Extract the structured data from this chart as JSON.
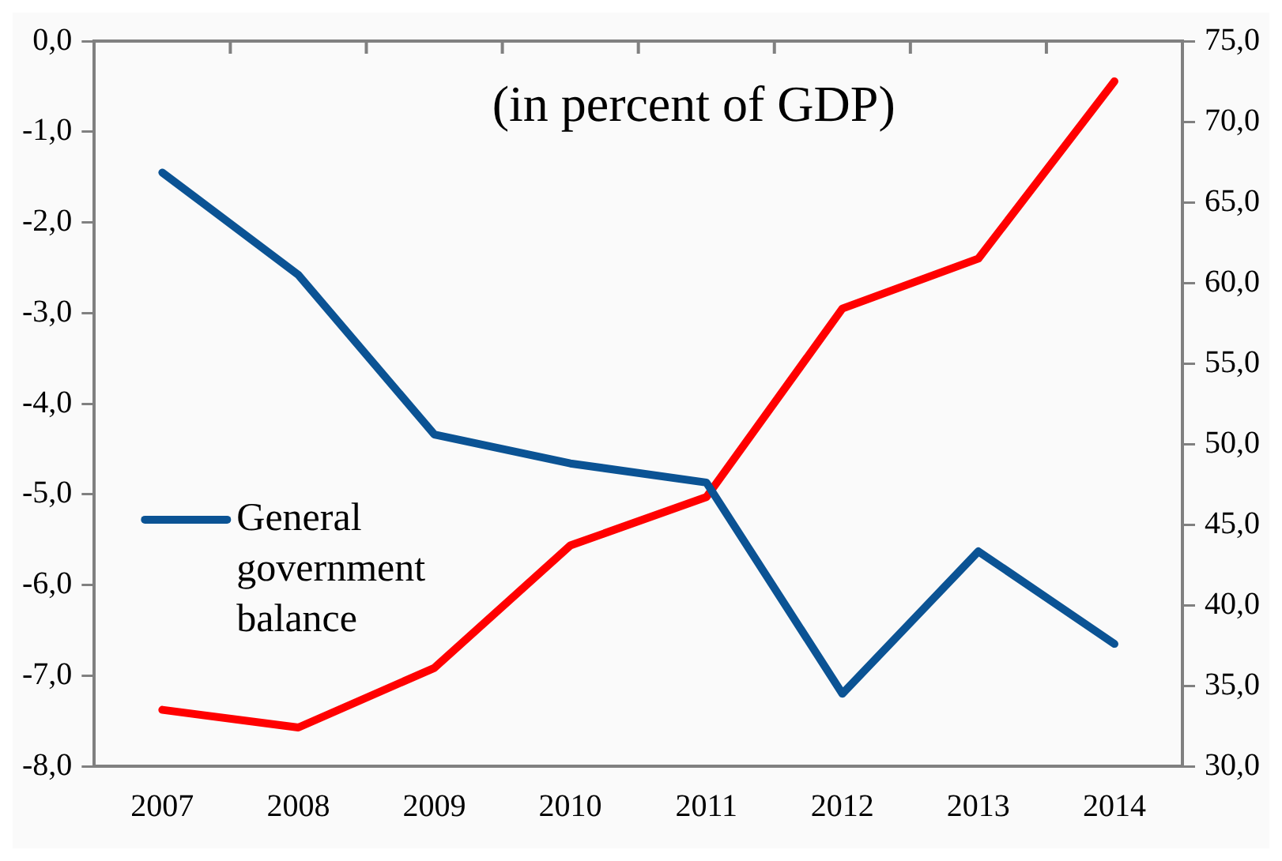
{
  "chart_data": {
    "type": "line",
    "title": "(in percent of GDP)",
    "categories": [
      "2007",
      "2008",
      "2009",
      "2010",
      "2011",
      "2012",
      "2013",
      "2014"
    ],
    "series": [
      {
        "name": "General government balance",
        "color": "#0b5394",
        "values": [
          -1.45,
          -2.58,
          -4.34,
          -4.66,
          -4.87,
          -7.2,
          -5.63,
          -6.65
        ]
      },
      {
        "color": "#ff0000",
        "axis": "y2",
        "values": [
          33.5,
          32.4,
          36.1,
          43.7,
          46.7,
          58.4,
          61.5,
          72.5
        ]
      }
    ],
    "ylim": [
      -8,
      0
    ],
    "yticks": [
      {
        "value": 0,
        "label": "0,0"
      },
      {
        "value": -1,
        "label": "-1,0"
      },
      {
        "value": -2,
        "label": "-2,0"
      },
      {
        "value": -3,
        "label": "-3,0"
      },
      {
        "value": -4,
        "label": "-4,0"
      },
      {
        "value": -5,
        "label": "-5,0"
      },
      {
        "value": -6,
        "label": "-6,0"
      },
      {
        "value": -7,
        "label": "-7,0"
      },
      {
        "value": -8,
        "label": "-8,0"
      }
    ],
    "y2lim": [
      30,
      75
    ],
    "y2ticks": [
      {
        "value": 30,
        "label": "30,0"
      },
      {
        "value": 35,
        "label": "35,0"
      },
      {
        "value": 40,
        "label": "40,0"
      },
      {
        "value": 45,
        "label": "45,0"
      },
      {
        "value": 50,
        "label": "50,0"
      },
      {
        "value": 55,
        "label": "55,0"
      },
      {
        "value": 60,
        "label": "60,0"
      },
      {
        "value": 65,
        "label": "65,0"
      },
      {
        "value": 70,
        "label": "70,0"
      },
      {
        "value": 75,
        "label": "75,0"
      }
    ],
    "grid": false,
    "legend": "left",
    "marker": "none",
    "line_style": "solid"
  }
}
